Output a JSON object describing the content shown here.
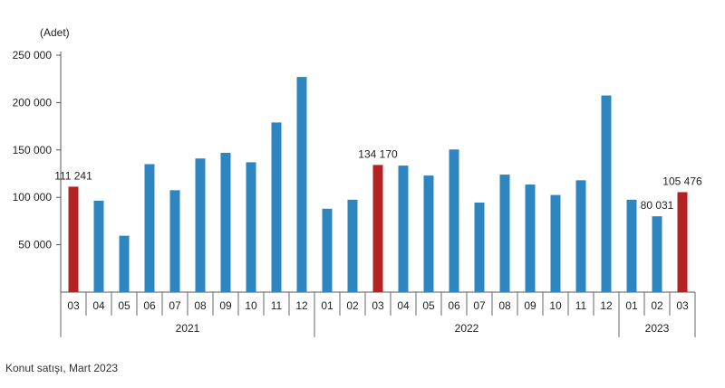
{
  "caption": "Konut satışı, Mart 2023",
  "chart_data": {
    "type": "bar",
    "title": "",
    "ylabel": "(Adet)",
    "xlabel": "",
    "ylim": [
      0,
      250000
    ],
    "yticks": [
      {
        "value": 50000,
        "label": "50 000"
      },
      {
        "value": 100000,
        "label": "100 000"
      },
      {
        "value": 150000,
        "label": "150 000"
      },
      {
        "value": 200000,
        "label": "200 000"
      },
      {
        "value": 250000,
        "label": "250 000"
      }
    ],
    "colors": {
      "default": "#2e86c1",
      "highlight": "#b22222"
    },
    "categories": [
      "03",
      "04",
      "05",
      "06",
      "07",
      "08",
      "09",
      "10",
      "11",
      "12",
      "01",
      "02",
      "03",
      "04",
      "05",
      "06",
      "07",
      "08",
      "09",
      "10",
      "11",
      "12",
      "01",
      "02",
      "03"
    ],
    "groups": [
      {
        "label": "2021",
        "start": 0,
        "end": 9
      },
      {
        "label": "2022",
        "start": 10,
        "end": 21
      },
      {
        "label": "2023",
        "start": 22,
        "end": 24
      }
    ],
    "values": [
      111241,
      96500,
      59500,
      135000,
      107500,
      141000,
      147000,
      137000,
      179000,
      227000,
      88000,
      97500,
      134170,
      133500,
      123000,
      150500,
      94500,
      124000,
      113500,
      102500,
      118000,
      207500,
      97500,
      80031,
      105476
    ],
    "highlight": [
      0,
      12,
      24
    ],
    "data_labels": [
      {
        "index": 0,
        "text": "111 241"
      },
      {
        "index": 12,
        "text": "134 170"
      },
      {
        "index": 23,
        "text": "80 031"
      },
      {
        "index": 24,
        "text": "105 476"
      }
    ]
  }
}
